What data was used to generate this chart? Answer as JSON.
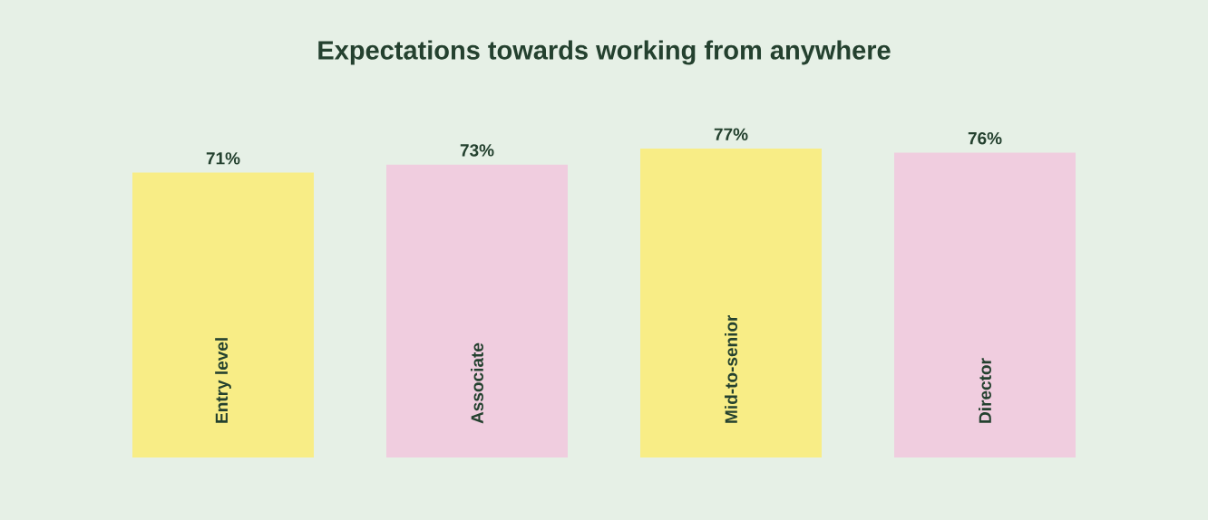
{
  "chart_data": {
    "type": "bar",
    "title": "Expectations towards working from anywhere",
    "categories": [
      "Entry level",
      "Associate",
      "Mid-to-senior",
      "Director"
    ],
    "values": [
      71,
      73,
      77,
      76
    ],
    "colors": [
      "#f8ed86",
      "#f0cddf",
      "#f8ed86",
      "#f0cddf"
    ],
    "value_labels": [
      "71%",
      "73%",
      "77%",
      "76%"
    ]
  }
}
